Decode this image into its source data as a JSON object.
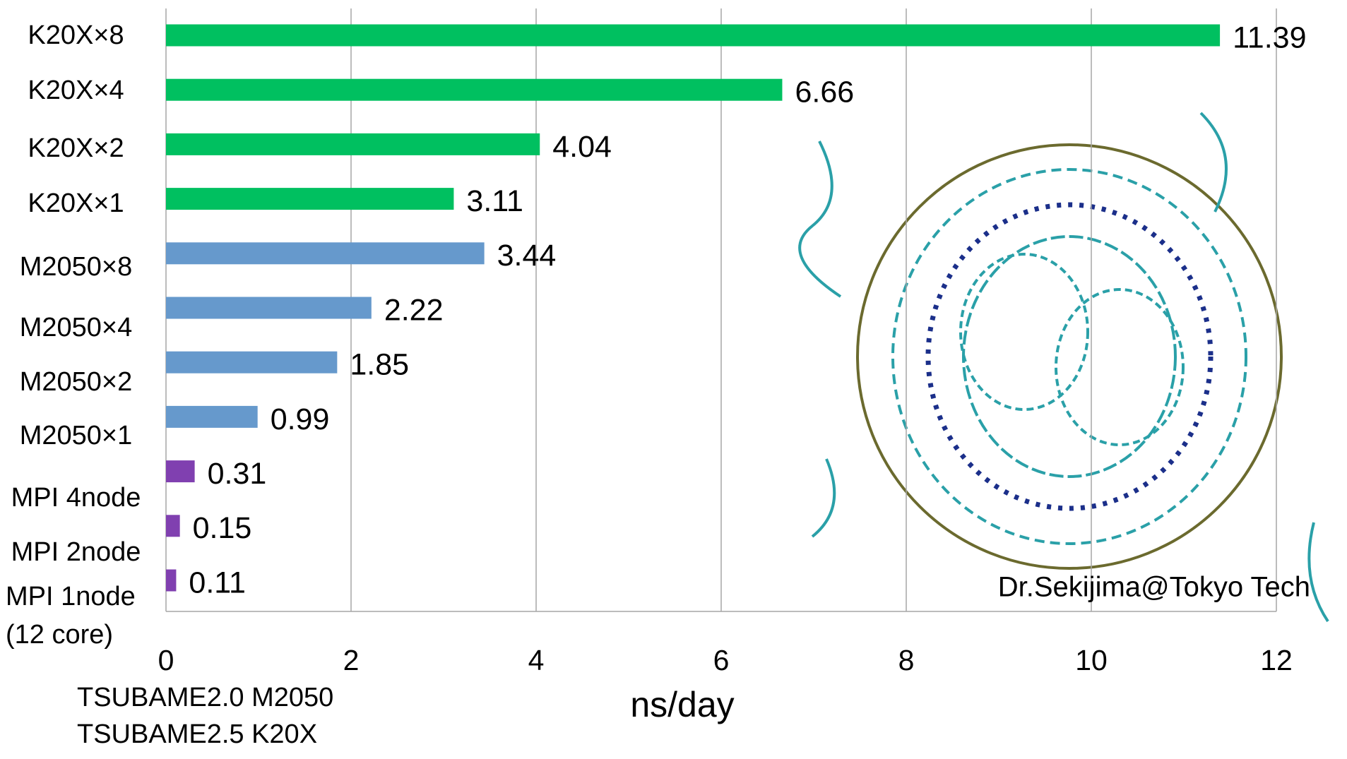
{
  "chart_data": {
    "type": "bar",
    "orientation": "horizontal",
    "categories": [
      "K20X×8",
      "K20X×4",
      "K20X×2",
      "K20X×1",
      "M2050×8",
      "M2050×4",
      "M2050×2",
      "M2050×1",
      "MPI 4node",
      "MPI 2node",
      "MPI 1node (12 core)"
    ],
    "values": [
      11.39,
      6.66,
      4.04,
      3.11,
      3.44,
      2.22,
      1.85,
      0.99,
      0.31,
      0.15,
      0.11
    ],
    "colors": [
      "#00c060",
      "#00c060",
      "#00c060",
      "#00c060",
      "#6699cc",
      "#6699cc",
      "#6699cc",
      "#6699cc",
      "#8040b0",
      "#8040b0",
      "#8040b0"
    ],
    "xlim": [
      0,
      12
    ],
    "xticks": [
      0,
      2,
      4,
      6,
      8,
      10,
      12
    ],
    "grid": true,
    "xlabel": "ns/day",
    "annotations": [
      "TSUBAME2.0 M2050",
      "TSUBAME2.5 K20X",
      "Dr.Sekijima@Tokyo Tech"
    ]
  }
}
